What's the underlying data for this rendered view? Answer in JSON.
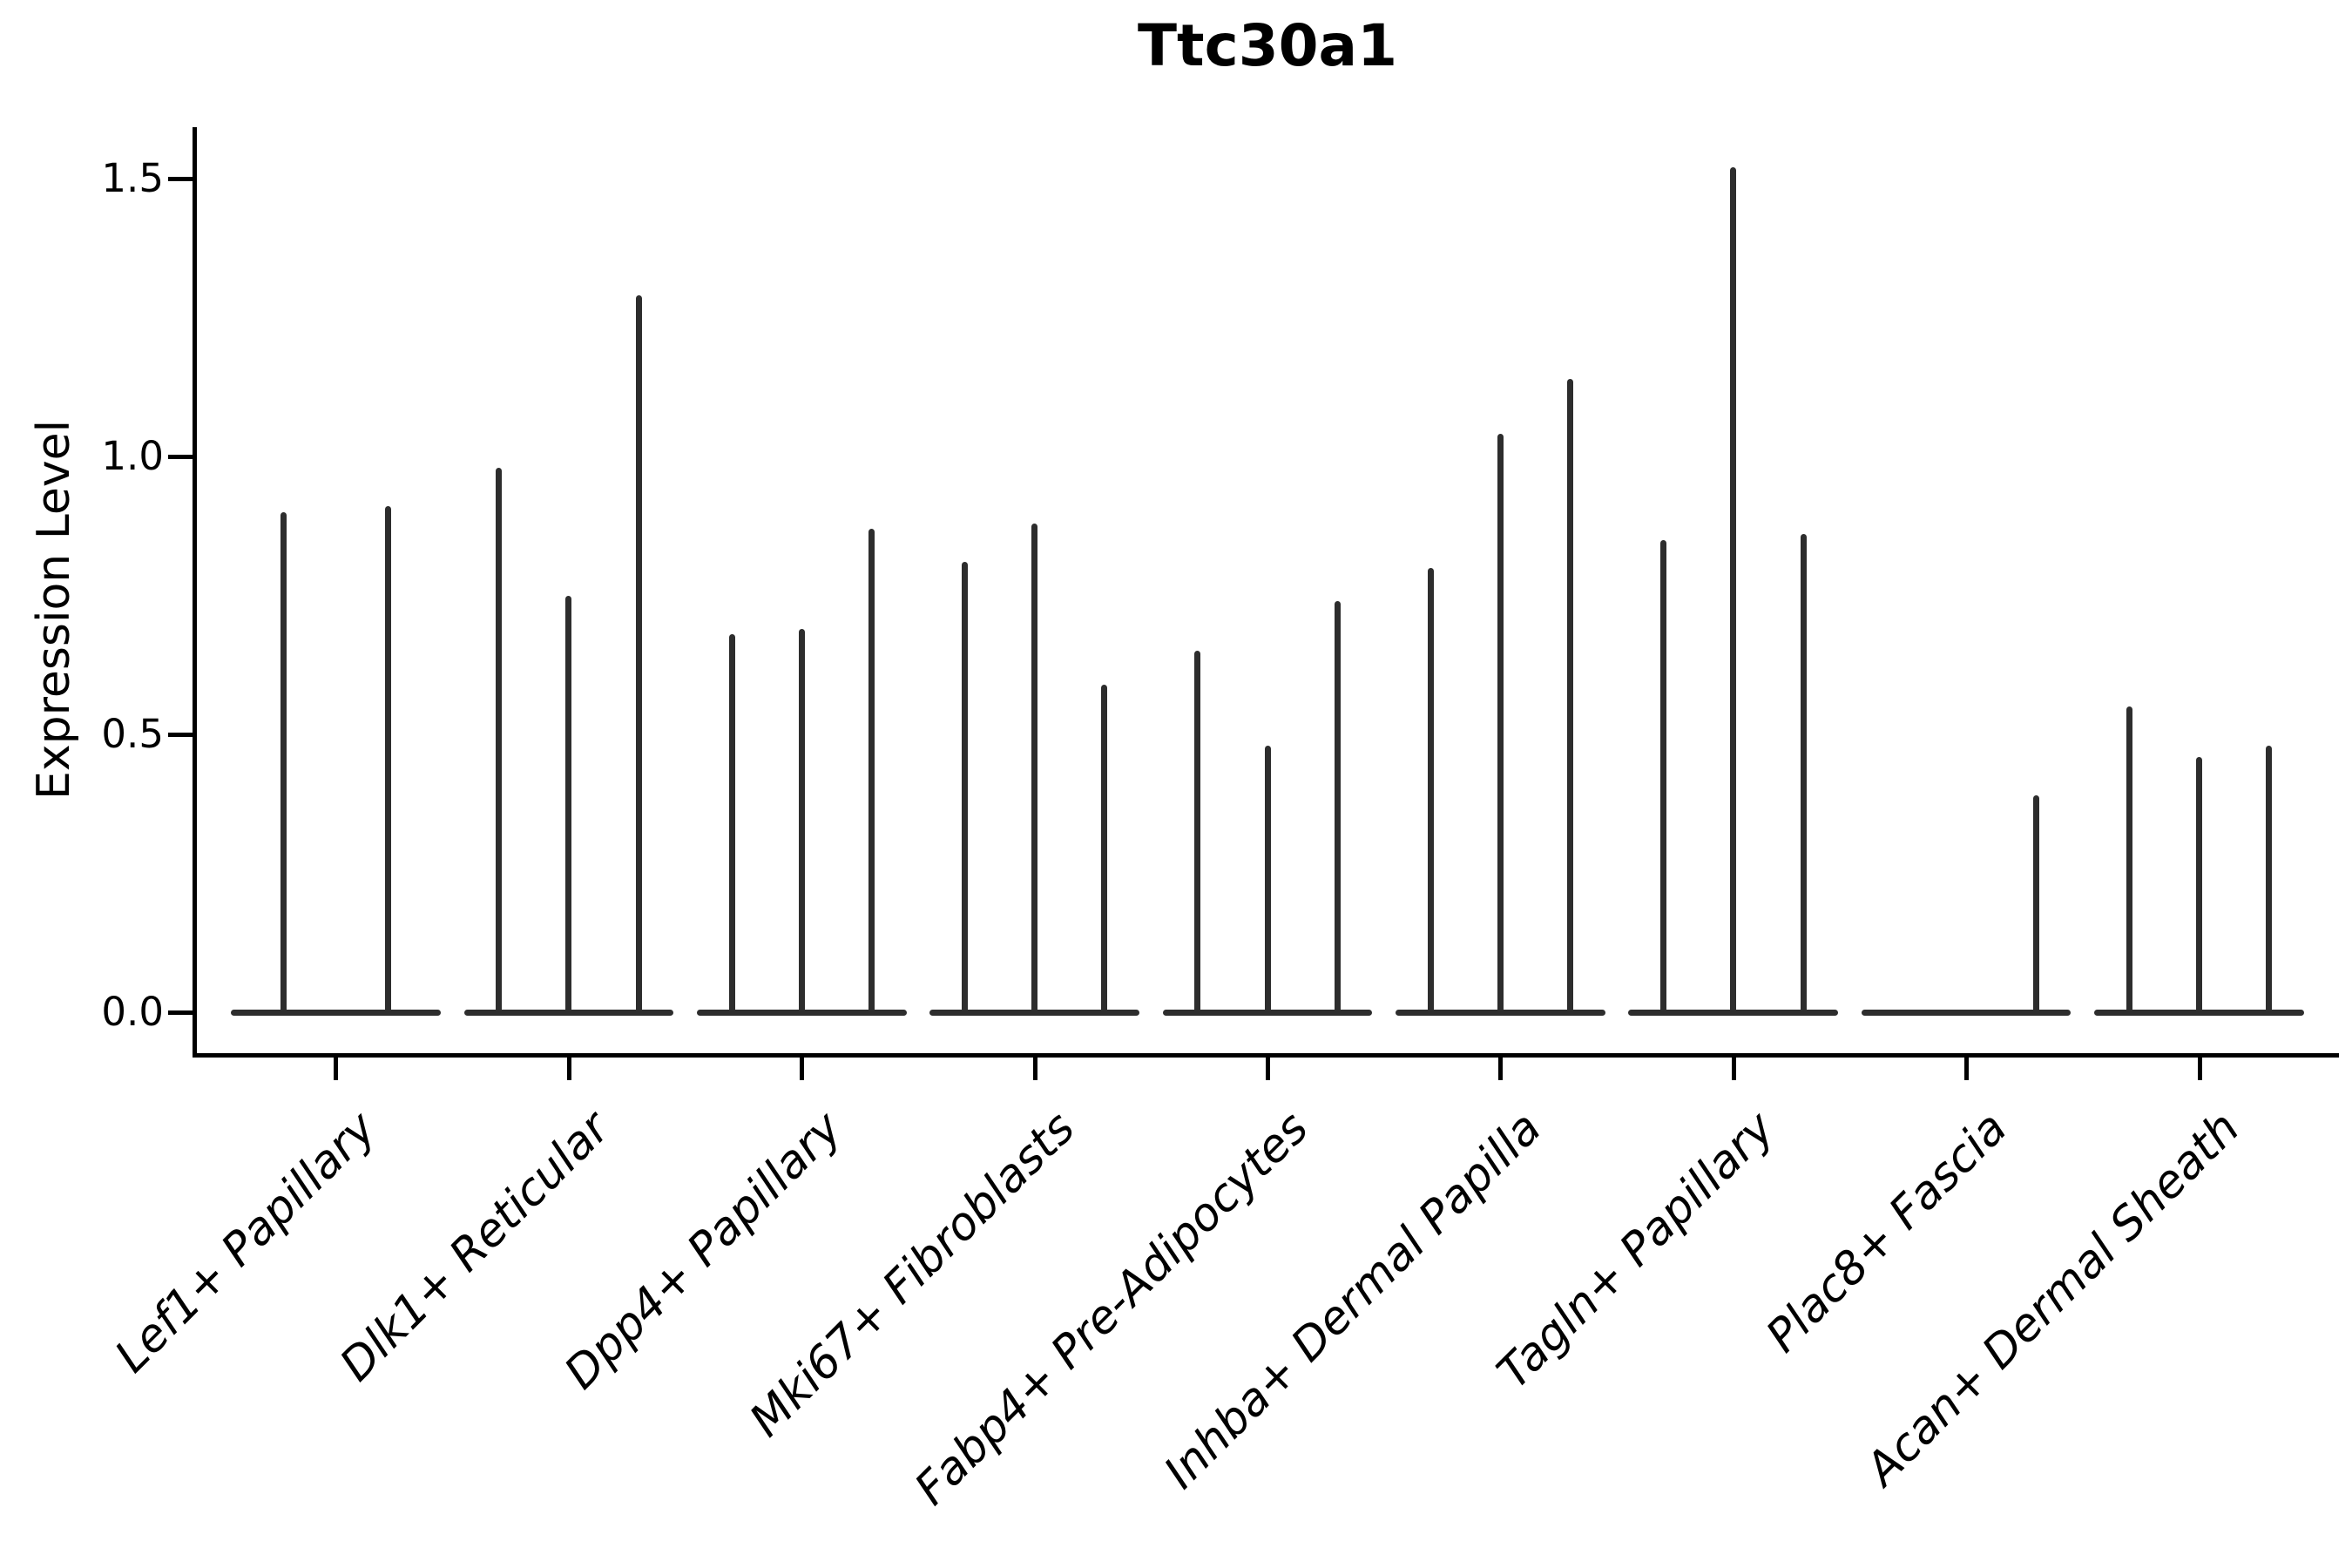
{
  "chart_data": {
    "type": "violin",
    "title": "Ttc30a1",
    "ylabel": "Expression Level",
    "xlabel": "",
    "ylim": [
      0,
      1.6
    ],
    "grid": false,
    "legend": "none",
    "ytick_values": [
      0.0,
      0.5,
      1.0,
      1.5
    ],
    "ytick_labels": [
      "0.0",
      "0.5",
      "1.0",
      "1.5"
    ],
    "categories": [
      "Lef1+ Papillary",
      "Dlk1+ Reticular",
      "Dpp4+ Papillary",
      "Mki67+ Fibroblasts",
      "Fabp4+ Pre-Adipocytes",
      "Inhba+ Dermal Papilla",
      "Tagln+ Papillary",
      "Plac8+ Fascia",
      "Acan+ Dermal Sheath"
    ],
    "violin_style": "Each violin has nearly all mass at 0 (flat base line) with a thin vertical spike reaching the maximum expression value; a value of 0 means a flat violin with no spike.",
    "groups": [
      {
        "category": "Lef1+ Papillary",
        "violin_max_values": [
          0.9,
          0.91
        ]
      },
      {
        "category": "Dlk1+ Reticular",
        "violin_max_values": [
          0.98,
          0.75,
          1.29
        ]
      },
      {
        "category": "Dpp4+ Papillary",
        "violin_max_values": [
          0.68,
          0.69,
          0.87
        ]
      },
      {
        "category": "Mki67+ Fibroblasts",
        "violin_max_values": [
          0.81,
          0.88,
          0.59
        ]
      },
      {
        "category": "Fabp4+ Pre-Adipocytes",
        "violin_max_values": [
          0.65,
          0.48,
          0.74
        ]
      },
      {
        "category": "Inhba+ Dermal Papilla",
        "violin_max_values": [
          0.8,
          1.04,
          1.14
        ]
      },
      {
        "category": "Tagln+ Papillary",
        "violin_max_values": [
          0.85,
          1.52,
          0.86
        ]
      },
      {
        "category": "Plac8+ Fascia",
        "violin_max_values": [
          0,
          0,
          0.39
        ]
      },
      {
        "category": "Acan+ Dermal Sheath",
        "violin_max_values": [
          0.55,
          0.46,
          0.48
        ]
      }
    ],
    "colors": {
      "violin": "#2d2d2d",
      "axis": "#000000",
      "text": "#000000",
      "background": "#ffffff"
    }
  }
}
